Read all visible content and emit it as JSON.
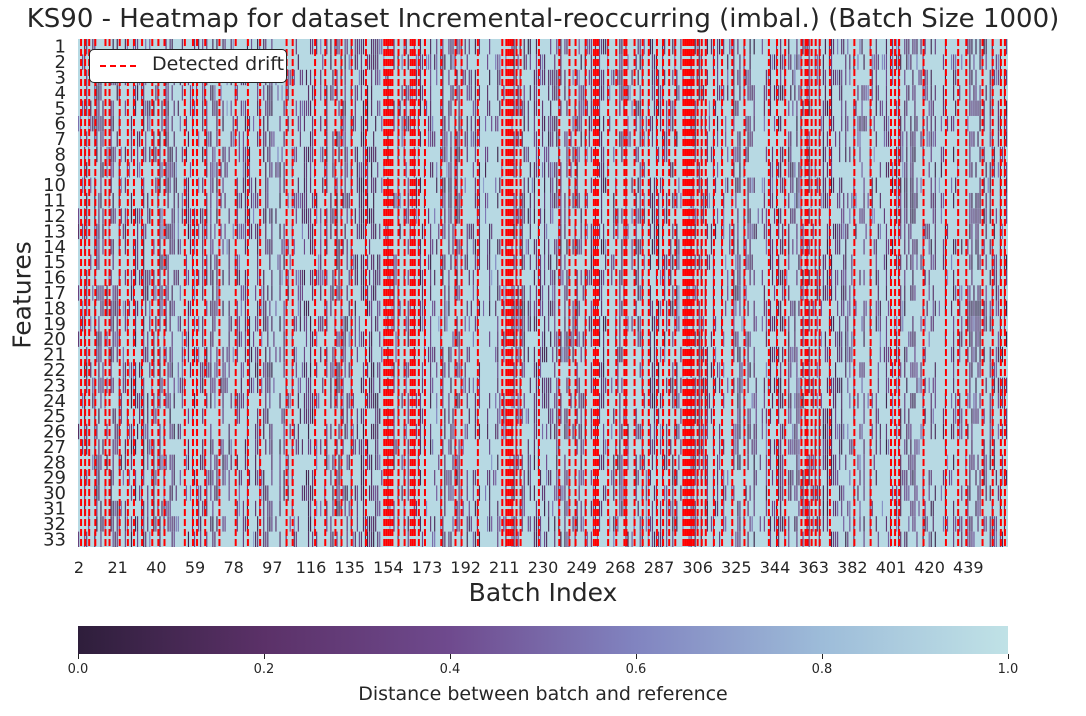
{
  "chart_data": {
    "type": "heatmap",
    "title": "KS90 - Heatmap for dataset Incremental-reoccurring (imbal.) (Batch Size 1000)",
    "xlabel": "Batch Index",
    "ylabel": "Features",
    "x_tick_labels": [
      "2",
      "21",
      "40",
      "59",
      "78",
      "97",
      "116",
      "135",
      "154",
      "173",
      "192",
      "211",
      "230",
      "249",
      "268",
      "287",
      "306",
      "325",
      "344",
      "363",
      "382",
      "401",
      "420",
      "439"
    ],
    "batch_range": [
      2,
      458
    ],
    "y_tick_labels": [
      "1",
      "2",
      "3",
      "4",
      "5",
      "6",
      "7",
      "8",
      "9",
      "10",
      "11",
      "12",
      "13",
      "14",
      "15",
      "16",
      "17",
      "18",
      "19",
      "20",
      "21",
      "22",
      "23",
      "24",
      "25",
      "26",
      "27",
      "28",
      "29",
      "30",
      "31",
      "32",
      "33"
    ],
    "legend": {
      "entries": [
        "Detected drift"
      ],
      "placement": "upper-left",
      "line_style": "dashed",
      "line_color": "#ff0000"
    },
    "colorbar": {
      "label": "Distance between batch and reference",
      "range": [
        0.0,
        1.0
      ],
      "tick_labels": [
        "0.0",
        "0.2",
        "0.4",
        "0.6",
        "0.8",
        "1.0"
      ],
      "colormap_stops": [
        "#2e1e3b",
        "#5b3168",
        "#6f4a8e",
        "#8184c0",
        "#9dbcd9",
        "#c0e2e6"
      ]
    },
    "detected_drift_batches": [
      3,
      5,
      7,
      10,
      15,
      17,
      22,
      26,
      29,
      33,
      38,
      41,
      44,
      54,
      58,
      60,
      64,
      71,
      79,
      85,
      91,
      104,
      107,
      118,
      123,
      128,
      131,
      136,
      143,
      152,
      153,
      154,
      155,
      156,
      159,
      162,
      165,
      166,
      167,
      169,
      172,
      180,
      187,
      190,
      198,
      210,
      212,
      213,
      214,
      215,
      217,
      219,
      228,
      238,
      243,
      246,
      251,
      255,
      256,
      257,
      262,
      266,
      270,
      271,
      275,
      279,
      282,
      286,
      289,
      292,
      295,
      299,
      300,
      301,
      302,
      303,
      304,
      306,
      308,
      310,
      314,
      318,
      323,
      329,
      341,
      345,
      349,
      357,
      359,
      360,
      362,
      364,
      366,
      371,
      383,
      391,
      401,
      403,
      405,
      417,
      428,
      434,
      438,
      446,
      451,
      455,
      457
    ]
  }
}
